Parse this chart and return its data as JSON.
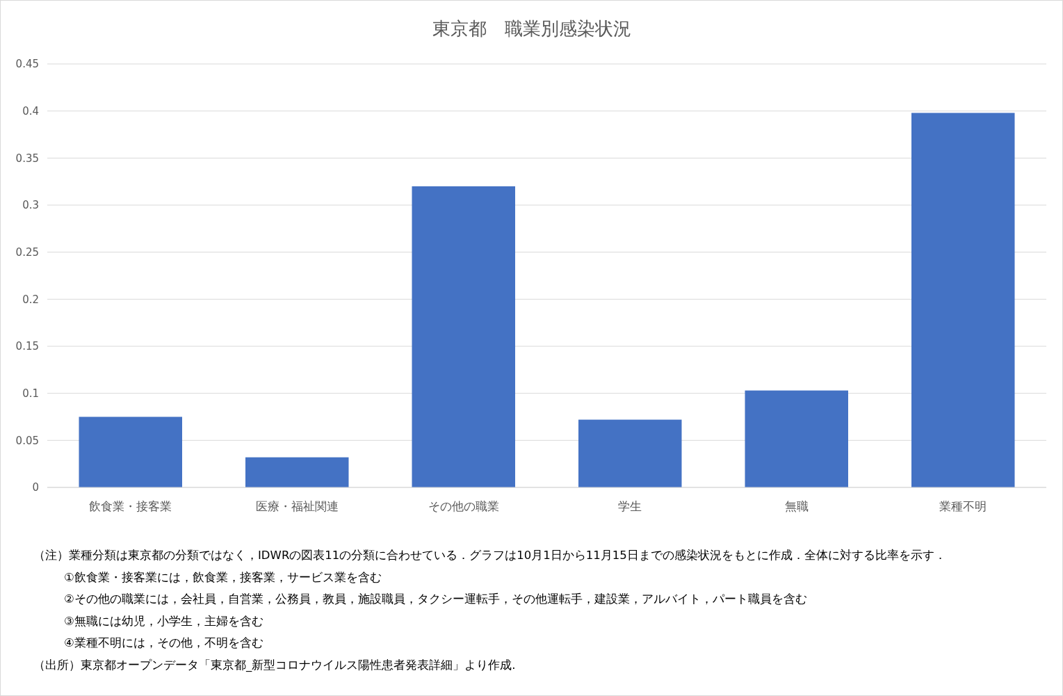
{
  "chart_data": {
    "type": "bar",
    "title": "東京都　職業別感染状況",
    "categories": [
      "飲食業・接客業",
      "医療・福祉関連",
      "その他の職業",
      "学生",
      "無職",
      "業種不明"
    ],
    "values": [
      0.075,
      0.032,
      0.32,
      0.072,
      0.103,
      0.398
    ],
    "color": "#4472c4",
    "ylim": [
      0,
      0.45
    ],
    "yticks": [
      0,
      0.05,
      0.1,
      0.15,
      0.2,
      0.25,
      0.3,
      0.35,
      0.4,
      0.45
    ],
    "grid": "y",
    "annotations": [
      "（注）業種分類は東京都の分類ではなく，IDWRの図表11の分類に合わせている．グラフは10月1日から11月15日までの感染状況をもとに作成．全体に対する比率を示す．",
      "①飲食業・接客業には，飲食業，接客業，サービス業を含む",
      "②その他の職業には，会社員，自営業，公務員，教員，施設職員，タクシー運転手，その他運転手，建設業，アルバイト，パート職員を含む",
      "③無職には幼児，小学生，主婦を含む",
      "④業種不明には，その他，不明を含む",
      "（出所）東京都オープンデータ「東京都_新型コロナウイルス陽性患者発表詳細」より作成."
    ]
  }
}
